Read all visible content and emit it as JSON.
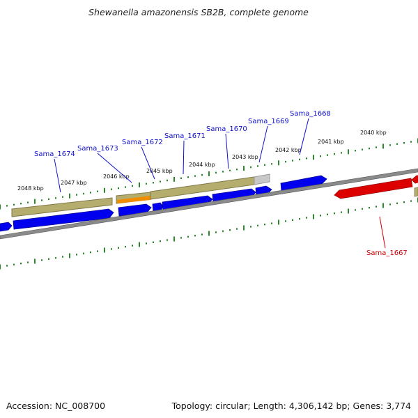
{
  "title": "Shewanella amazonensis SB2B, complete genome",
  "footer": {
    "accession": "Accession: NC_008700",
    "stats": "Topology: circular; Length: 4,306,142 bp; Genes: 3,774"
  },
  "colors": {
    "forward_gene": "#0000ee",
    "reverse_gene": "#dd0000",
    "rna": "#b5ad6d",
    "highlight": "#f08c00",
    "pseudo": "#c8c8c8",
    "backbone": "#8a8a8a",
    "ticks": "#2a8a2a"
  },
  "scale_ticks": [
    "2040 kbp",
    "2041 kbp",
    "2042 kbp",
    "2043 kbp",
    "2044 kbp",
    "2045 kbp",
    "2046 kbp",
    "2047 kbp",
    "2048 kbp"
  ],
  "gene_labels": [
    {
      "name": "Sama_1668",
      "color": "#1010cc"
    },
    {
      "name": "Sama_1669",
      "color": "#1010cc"
    },
    {
      "name": "Sama_1670",
      "color": "#1010cc"
    },
    {
      "name": "Sama_1671",
      "color": "#1010cc"
    },
    {
      "name": "Sama_1672",
      "color": "#1010cc"
    },
    {
      "name": "Sama_1673",
      "color": "#1010cc"
    },
    {
      "name": "Sama_1674",
      "color": "#1010cc"
    },
    {
      "name": "Sama_1667",
      "color": "#cc0000"
    }
  ]
}
